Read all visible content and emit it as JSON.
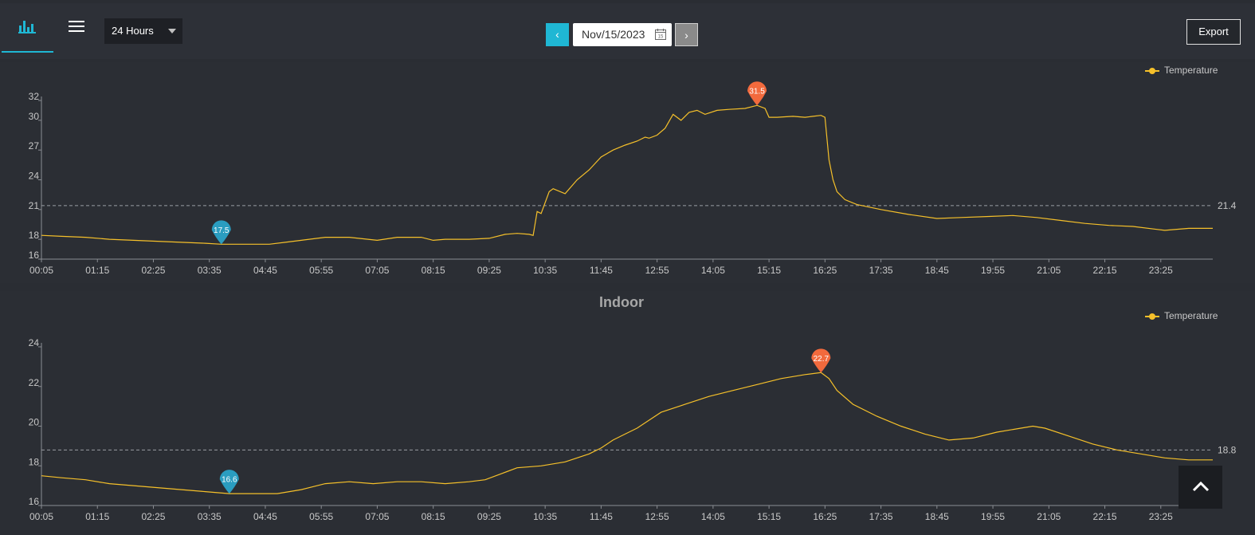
{
  "toolbar": {
    "range_label": "24 Hours",
    "date_value": "Nov/15/2023",
    "prev_label": "‹",
    "next_label": "›",
    "calendar_day": "15",
    "export_label": "Export"
  },
  "colors": {
    "accent": "#1fb7d4",
    "line": "#f5c02a",
    "max_marker": "#f26a3d",
    "min_marker": "#2a9dc0"
  },
  "icons": {
    "chart_tab": "bar-chart-icon",
    "menu": "hamburger-icon",
    "calendar": "calendar-icon",
    "scroll_top": "chevron-up-icon"
  },
  "chart_data": [
    {
      "type": "line",
      "title": "",
      "legend": "Temperature",
      "legend_position": "top-right",
      "xlabel": "",
      "ylabel": "",
      "x_ticks": [
        "00:05",
        "01:15",
        "02:25",
        "03:35",
        "04:45",
        "05:55",
        "07:05",
        "08:15",
        "09:25",
        "10:35",
        "11:45",
        "12:55",
        "14:05",
        "15:15",
        "16:25",
        "17:35",
        "18:45",
        "19:55",
        "21:05",
        "22:15",
        "23:25"
      ],
      "y_ticks": [
        16,
        18,
        21,
        24,
        27,
        30,
        32
      ],
      "ylim": [
        16,
        32
      ],
      "xlim": [
        "00:05",
        "24:30"
      ],
      "average": 21.4,
      "max": {
        "time": "15:00",
        "value": 31.5,
        "label": "31.5"
      },
      "min": {
        "time": "03:50",
        "value": 17.5,
        "label": "17.5"
      },
      "series": [
        {
          "name": "Temperature",
          "x": [
            "00:05",
            "00:30",
            "01:00",
            "01:30",
            "02:00",
            "02:30",
            "03:00",
            "03:30",
            "03:50",
            "04:20",
            "04:50",
            "05:10",
            "05:30",
            "06:00",
            "06:30",
            "07:05",
            "07:30",
            "08:00",
            "08:15",
            "08:30",
            "09:00",
            "09:25",
            "09:45",
            "10:00",
            "10:15",
            "10:20",
            "10:25",
            "10:30",
            "10:40",
            "10:45",
            "11:00",
            "11:15",
            "11:30",
            "11:45",
            "12:00",
            "12:15",
            "12:30",
            "12:40",
            "12:45",
            "12:55",
            "13:05",
            "13:15",
            "13:25",
            "13:35",
            "13:45",
            "13:55",
            "14:10",
            "14:25",
            "14:45",
            "15:00",
            "15:10",
            "15:15",
            "15:25",
            "15:45",
            "16:00",
            "16:10",
            "16:20",
            "16:25",
            "16:30",
            "16:35",
            "16:40",
            "16:50",
            "17:05",
            "17:35",
            "18:10",
            "18:45",
            "19:15",
            "19:50",
            "20:20",
            "20:50",
            "21:20",
            "21:50",
            "22:20",
            "22:50",
            "23:20",
            "23:30",
            "24:00",
            "24:30"
          ],
          "values": [
            18.4,
            18.3,
            18.2,
            18.0,
            17.9,
            17.8,
            17.7,
            17.6,
            17.5,
            17.5,
            17.5,
            17.7,
            17.9,
            18.2,
            18.2,
            17.9,
            18.2,
            18.2,
            17.9,
            18.0,
            18.0,
            18.1,
            18.5,
            18.6,
            18.5,
            18.4,
            20.8,
            20.6,
            22.8,
            23.1,
            22.6,
            24.0,
            25.0,
            26.3,
            27.0,
            27.5,
            27.9,
            28.3,
            28.2,
            28.5,
            29.2,
            30.6,
            30.0,
            30.8,
            31.0,
            30.6,
            31.0,
            31.1,
            31.2,
            31.5,
            31.2,
            30.3,
            30.3,
            30.4,
            30.3,
            30.4,
            30.5,
            30.3,
            26.0,
            24.0,
            22.8,
            22.0,
            21.5,
            21.0,
            20.5,
            20.1,
            20.2,
            20.3,
            20.4,
            20.2,
            19.9,
            19.6,
            19.4,
            19.3,
            19.0,
            18.9,
            19.1,
            19.1
          ]
        }
      ]
    },
    {
      "type": "line",
      "title": "Indoor",
      "legend": "Temperature",
      "legend_position": "top-right",
      "xlabel": "",
      "ylabel": "",
      "x_ticks": [
        "00:05",
        "01:15",
        "02:25",
        "03:35",
        "04:45",
        "05:55",
        "07:05",
        "08:15",
        "09:25",
        "10:35",
        "11:45",
        "12:55",
        "14:05",
        "15:15",
        "16:25",
        "17:35",
        "18:45",
        "19:55",
        "21:05",
        "22:15",
        "23:25"
      ],
      "y_ticks": [
        16,
        18,
        20,
        22,
        24
      ],
      "ylim": [
        16,
        24
      ],
      "xlim": [
        "00:05",
        "24:30"
      ],
      "average": 18.8,
      "max": {
        "time": "16:20",
        "value": 22.7,
        "label": "22.7"
      },
      "min": {
        "time": "04:00",
        "value": 16.6,
        "label": "16.6"
      },
      "series": [
        {
          "name": "Temperature",
          "x": [
            "00:05",
            "00:30",
            "01:00",
            "01:30",
            "02:00",
            "02:30",
            "03:00",
            "03:30",
            "04:00",
            "04:30",
            "05:00",
            "05:30",
            "06:00",
            "06:30",
            "07:00",
            "07:30",
            "08:00",
            "08:30",
            "09:00",
            "09:20",
            "09:40",
            "10:00",
            "10:30",
            "11:00",
            "11:30",
            "11:45",
            "12:00",
            "12:15",
            "12:30",
            "12:45",
            "13:00",
            "13:30",
            "14:00",
            "14:30",
            "15:00",
            "15:30",
            "16:00",
            "16:20",
            "16:30",
            "16:40",
            "17:00",
            "17:30",
            "18:00",
            "18:30",
            "19:00",
            "19:30",
            "20:00",
            "20:30",
            "20:45",
            "21:00",
            "21:30",
            "22:00",
            "22:30",
            "23:00",
            "23:30",
            "24:00",
            "24:30"
          ],
          "values": [
            17.5,
            17.4,
            17.3,
            17.1,
            17.0,
            16.9,
            16.8,
            16.7,
            16.6,
            16.6,
            16.6,
            16.8,
            17.1,
            17.2,
            17.1,
            17.2,
            17.2,
            17.1,
            17.2,
            17.3,
            17.6,
            17.9,
            18.0,
            18.2,
            18.6,
            18.9,
            19.3,
            19.6,
            19.9,
            20.3,
            20.7,
            21.1,
            21.5,
            21.8,
            22.1,
            22.4,
            22.6,
            22.7,
            22.4,
            21.8,
            21.1,
            20.5,
            20.0,
            19.6,
            19.3,
            19.4,
            19.7,
            19.9,
            20.0,
            19.9,
            19.5,
            19.1,
            18.8,
            18.6,
            18.4,
            18.3,
            18.3
          ]
        }
      ]
    }
  ]
}
